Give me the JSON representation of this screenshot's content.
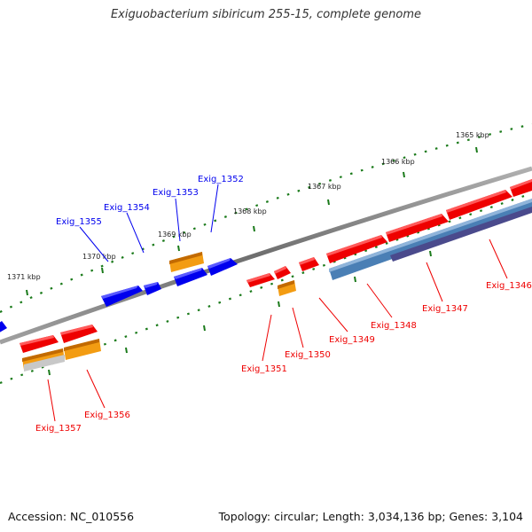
{
  "title": "Exiguobacterium sibiricum 255-15, complete genome",
  "footer": {
    "accession": "Accession: NC_010556",
    "topology": "Topology: circular; Length: 3,034,136 bp; Genes: 3,104"
  },
  "colors": {
    "forward_gene": "#ee0000",
    "reverse_gene": "#0000ee",
    "rna_gene": "#f39c12",
    "pseudo_gene": "#4a7fb5",
    "ncrna": "#4a4a8c",
    "backbone": "#808080",
    "tick": "#1a7a1a"
  },
  "scale_labels": [
    "1365 kbp",
    "1366 kbp",
    "1367 kbp",
    "1368 kbp",
    "1369 kbp",
    "1370 kbp",
    "1371 kbp"
  ],
  "genes_forward_labels": [
    {
      "id": "Exig_1346"
    },
    {
      "id": "Exig_1347"
    },
    {
      "id": "Exig_1348"
    },
    {
      "id": "Exig_1349"
    },
    {
      "id": "Exig_1350"
    },
    {
      "id": "Exig_1351"
    },
    {
      "id": "Exig_1356"
    },
    {
      "id": "Exig_1357"
    }
  ],
  "genes_reverse_labels": [
    {
      "id": "Exig_1352"
    },
    {
      "id": "Exig_1353"
    },
    {
      "id": "Exig_1354"
    },
    {
      "id": "Exig_1355"
    }
  ]
}
